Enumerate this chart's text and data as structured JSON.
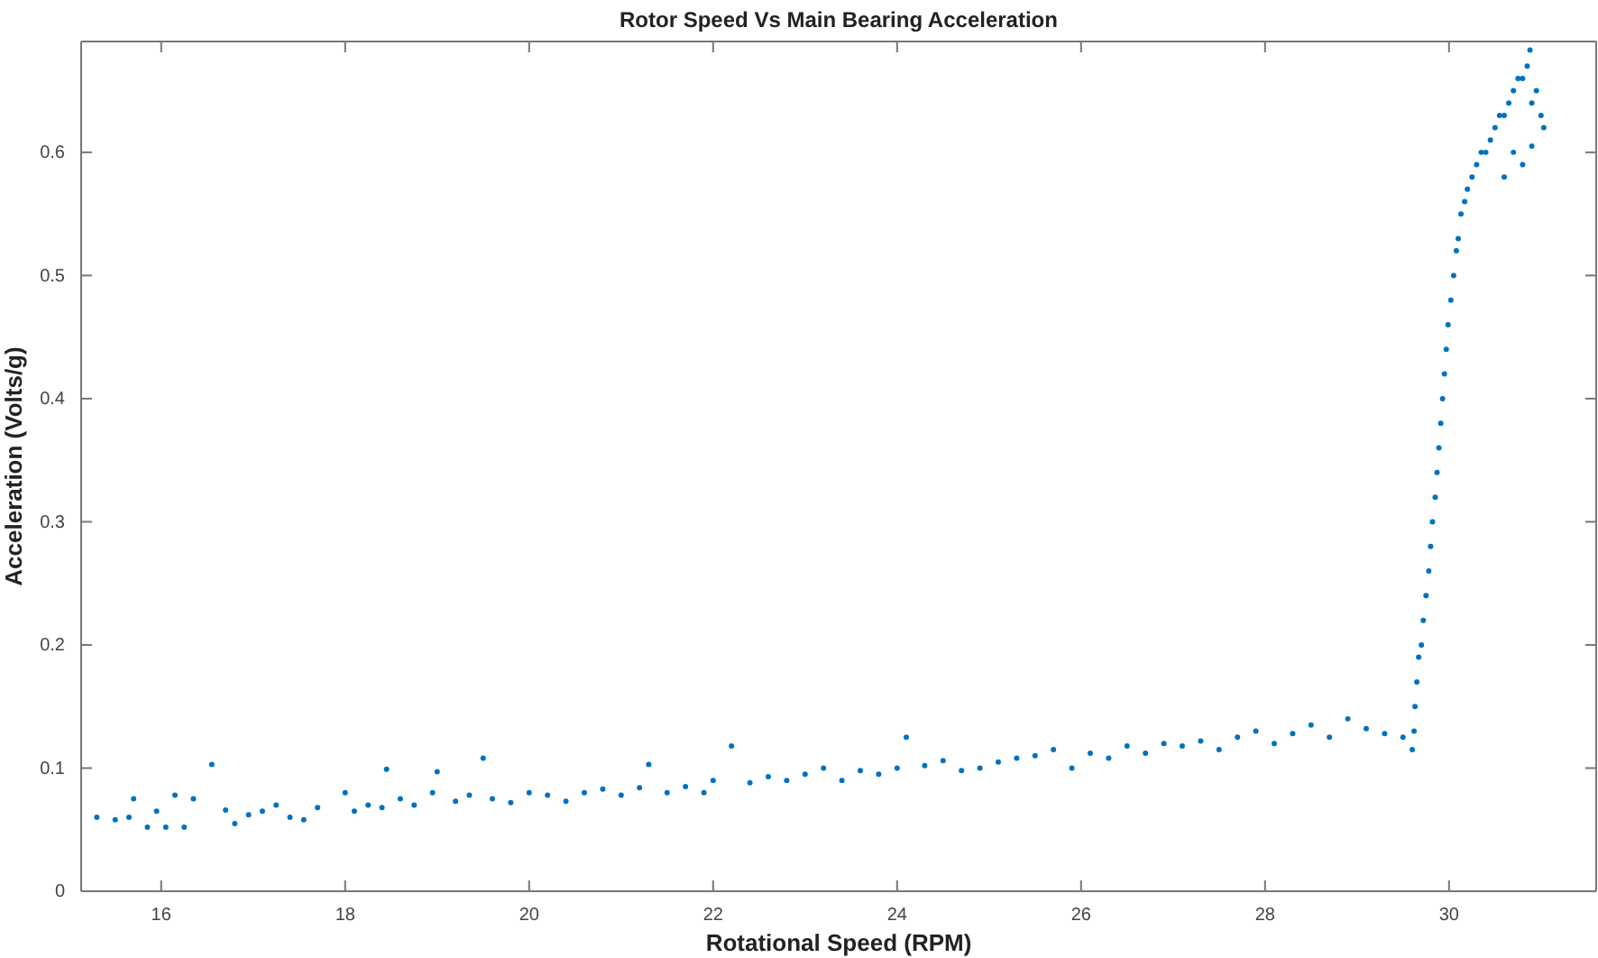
{
  "chart_data": {
    "type": "scatter",
    "title": "Rotor Speed Vs Main Bearing Acceleration",
    "xlabel": "Rotational Speed (RPM)",
    "ylabel": "Acceleration (Volts/g)",
    "xlim": [
      15.13,
      31.6
    ],
    "xticks": [
      16,
      18,
      20,
      22,
      24,
      26,
      28,
      30
    ],
    "ylim": [
      0,
      0.69
    ],
    "yticks": [
      0,
      0.1,
      0.2,
      0.3,
      0.4,
      0.5,
      0.6
    ],
    "grid": false,
    "marker": "circle",
    "series": [
      {
        "color": "#0072bd",
        "x": [
          15.3,
          15.5,
          15.65,
          15.7,
          15.85,
          15.95,
          16.05,
          16.15,
          16.25,
          16.35,
          16.55,
          16.7,
          16.8,
          16.95,
          17.1,
          17.25,
          17.4,
          17.55,
          17.7,
          18.0,
          18.1,
          18.25,
          18.4,
          18.45,
          18.6,
          18.75,
          18.95,
          19.0,
          19.2,
          19.35,
          19.5,
          19.6,
          19.8,
          20.0,
          20.2,
          20.4,
          20.6,
          20.8,
          21.0,
          21.2,
          21.3,
          21.5,
          21.7,
          21.9,
          22.0,
          22.2,
          22.4,
          22.6,
          22.8,
          23.0,
          23.2,
          23.4,
          23.6,
          23.8,
          24.0,
          24.1,
          24.3,
          24.5,
          24.7,
          24.9,
          25.1,
          25.3,
          25.5,
          25.7,
          25.9,
          26.1,
          26.3,
          26.5,
          26.7,
          26.9,
          27.1,
          27.3,
          27.5,
          27.7,
          27.9,
          28.1,
          28.3,
          28.5,
          28.7,
          28.9,
          29.1,
          29.3,
          29.5,
          29.6,
          29.62,
          29.63,
          29.65,
          29.67,
          29.7,
          29.72,
          29.75,
          29.78,
          29.8,
          29.82,
          29.85,
          29.87,
          29.89,
          29.91,
          29.93,
          29.95,
          29.97,
          29.99,
          30.02,
          30.05,
          30.08,
          30.1,
          30.13,
          30.17,
          30.2,
          30.25,
          30.3,
          30.35,
          30.4,
          30.45,
          30.5,
          30.55,
          30.6,
          30.65,
          30.7,
          30.75,
          30.8,
          30.85,
          30.88,
          30.9,
          30.95,
          31.0,
          31.03,
          30.7,
          30.8,
          30.9,
          30.6
        ],
        "values": [
          0.06,
          0.058,
          0.06,
          0.075,
          0.052,
          0.065,
          0.052,
          0.078,
          0.052,
          0.075,
          0.103,
          0.066,
          0.055,
          0.062,
          0.065,
          0.07,
          0.06,
          0.058,
          0.068,
          0.08,
          0.065,
          0.07,
          0.068,
          0.099,
          0.075,
          0.07,
          0.08,
          0.097,
          0.073,
          0.078,
          0.108,
          0.075,
          0.072,
          0.08,
          0.078,
          0.073,
          0.08,
          0.083,
          0.078,
          0.084,
          0.103,
          0.08,
          0.085,
          0.08,
          0.09,
          0.118,
          0.088,
          0.093,
          0.09,
          0.095,
          0.1,
          0.09,
          0.098,
          0.095,
          0.1,
          0.125,
          0.102,
          0.106,
          0.098,
          0.1,
          0.105,
          0.108,
          0.11,
          0.115,
          0.1,
          0.112,
          0.108,
          0.118,
          0.112,
          0.12,
          0.118,
          0.122,
          0.115,
          0.125,
          0.13,
          0.12,
          0.128,
          0.135,
          0.125,
          0.14,
          0.132,
          0.128,
          0.125,
          0.115,
          0.13,
          0.15,
          0.17,
          0.19,
          0.2,
          0.22,
          0.24,
          0.26,
          0.28,
          0.3,
          0.32,
          0.34,
          0.36,
          0.38,
          0.4,
          0.42,
          0.44,
          0.46,
          0.48,
          0.5,
          0.52,
          0.53,
          0.55,
          0.56,
          0.57,
          0.58,
          0.59,
          0.6,
          0.6,
          0.61,
          0.62,
          0.63,
          0.63,
          0.64,
          0.65,
          0.66,
          0.66,
          0.67,
          0.683,
          0.64,
          0.65,
          0.63,
          0.62,
          0.6,
          0.59,
          0.605,
          0.58
        ]
      }
    ]
  }
}
